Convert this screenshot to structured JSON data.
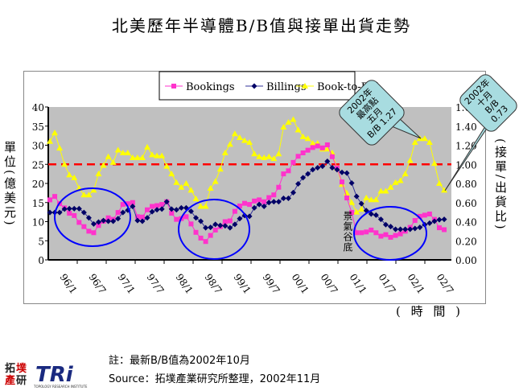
{
  "title": "北美歷年半導體B/B值與接單出貨走勢",
  "left_axis_label": "單位(億美元)",
  "right_axis_label": "(接單/出貨比)",
  "x_axis_label": "( 時 間 )",
  "annotations": {
    "trough": "景氣谷底",
    "callout_peak": [
      "2002年",
      "最高點",
      "五月",
      "B/B 1.27"
    ],
    "callout_oct": [
      "2002年",
      "十月",
      "B/B",
      "0.73"
    ]
  },
  "footnote": "註：最新B/B值為2002年10月",
  "source": "Source：拓墣產業研究所整理，2002年11月",
  "logo_text": "拓墣 TRi TOPOLOGY RESEARCH INSTITUTE",
  "colors": {
    "bookings": "#FF33CC",
    "billings": "#000066",
    "btb": "#FFFF00",
    "plot_bg": "#C0C0C0",
    "reference": "#FF0000",
    "ellipse": "#0000FF",
    "callout": "#A8DCE0"
  },
  "chart_data": {
    "type": "line",
    "title": "北美歷年半導體B/B值與接單出貨走勢",
    "xlabel": "( 時 間 )",
    "ylabel": "單位(億美元)",
    "y2label": "(接單/出貨比)",
    "ylim": [
      0,
      40
    ],
    "y2lim": [
      0,
      1.6
    ],
    "yticks": [
      "0",
      "5",
      "10",
      "15",
      "20",
      "25",
      "30",
      "35",
      "40"
    ],
    "y2ticks": [
      "0.00",
      "0.20",
      "0.40",
      "0.60",
      "0.80",
      "1.00",
      "1.20",
      "1.40",
      "1.60"
    ],
    "xtick_labels": [
      "96/1",
      "96/7",
      "97/1",
      "97/7",
      "98/1",
      "98/7",
      "99/1",
      "99/7",
      "00/1",
      "00/7",
      "01/1",
      "01/7",
      "02/1",
      "02/7"
    ],
    "x_start": "1996/1",
    "x_end": "2002/10",
    "grid": false,
    "legend": "top",
    "reference_line": {
      "axis": "y2",
      "value": 1.0,
      "style": "dashed"
    },
    "series": [
      {
        "name": "Bookings",
        "axis": "y",
        "marker": "square",
        "values": [
          15.7,
          16.6,
          14.7,
          13.6,
          12.2,
          11.6,
          9.8,
          8.7,
          7.5,
          7.1,
          9,
          10.1,
          11,
          10.6,
          12.4,
          14.5,
          14.7,
          15,
          11.3,
          11.2,
          13.1,
          14,
          14.2,
          14.5,
          15.2,
          12.2,
          10.6,
          10.8,
          11.3,
          9.4,
          7.2,
          5.7,
          4.8,
          6.4,
          7.8,
          8.7,
          10,
          10.2,
          12.7,
          14.1,
          14.8,
          14.5,
          15.4,
          15.7,
          15.2,
          16.3,
          17,
          19,
          22.5,
          23.3,
          25.5,
          27.1,
          28,
          28.7,
          29.4,
          29.8,
          29.3,
          30.1,
          27,
          24,
          20.4,
          16.2,
          12.4,
          7.1,
          7.1,
          7.3,
          7.8,
          7.1,
          6.2,
          6.6,
          5.9,
          6.4,
          6.8,
          7.5,
          8.5,
          10.3,
          11.4,
          11.7,
          12,
          10.6,
          8.4,
          7.9
        ]
      },
      {
        "name": "Billings",
        "axis": "y",
        "marker": "diamond",
        "values": [
          12.4,
          12.4,
          12.4,
          13.3,
          13.4,
          13.4,
          13.4,
          12.4,
          11,
          9.4,
          9.9,
          10.3,
          10.1,
          10.1,
          10.8,
          12.4,
          13,
          14,
          10.3,
          10.1,
          11,
          12.6,
          13.1,
          13.3,
          15.2,
          13.3,
          13.1,
          13.6,
          13.6,
          12.7,
          11,
          10.1,
          8.4,
          8.5,
          9.3,
          9,
          8.9,
          8.4,
          9.3,
          10.8,
          11.6,
          11.4,
          13.6,
          14.5,
          14,
          15,
          15.2,
          15.2,
          16.1,
          16.1,
          17.6,
          19.9,
          21.5,
          22.5,
          23.6,
          24.1,
          24.5,
          25.8,
          24.1,
          23.6,
          22.9,
          22.7,
          20.1,
          16.6,
          14.7,
          12.9,
          12,
          11.7,
          10.6,
          9.2,
          8.7,
          8,
          8,
          8,
          8,
          8.2,
          8.5,
          9.2,
          9.6,
          10.1,
          10.5,
          10.6
        ]
      },
      {
        "name": "Book-to-Bill",
        "axis": "y2",
        "marker": "triangle",
        "values": [
          1.24,
          1.33,
          1.17,
          1.0,
          0.89,
          0.86,
          0.75,
          0.68,
          0.68,
          0.73,
          0.9,
          0.99,
          1.08,
          1.02,
          1.15,
          1.12,
          1.12,
          1.07,
          1.07,
          1.07,
          1.18,
          1.1,
          1.09,
          1.09,
          0.98,
          0.9,
          0.81,
          0.76,
          0.8,
          0.73,
          0.64,
          0.56,
          0.56,
          0.75,
          0.82,
          0.95,
          1.12,
          1.21,
          1.32,
          1.28,
          1.25,
          1.23,
          1.11,
          1.08,
          1.07,
          1.08,
          1.06,
          1.11,
          1.39,
          1.44,
          1.47,
          1.36,
          1.29,
          1.27,
          1.22,
          1.22,
          1.16,
          1.16,
          1.12,
          0.96,
          0.79,
          0.7,
          0.6,
          0.5,
          0.53,
          0.65,
          0.63,
          0.63,
          0.72,
          0.72,
          0.76,
          0.81,
          0.83,
          0.9,
          1.04,
          1.23,
          1.27,
          1.27,
          1.23,
          1.01,
          0.8,
          0.73
        ]
      }
    ]
  }
}
